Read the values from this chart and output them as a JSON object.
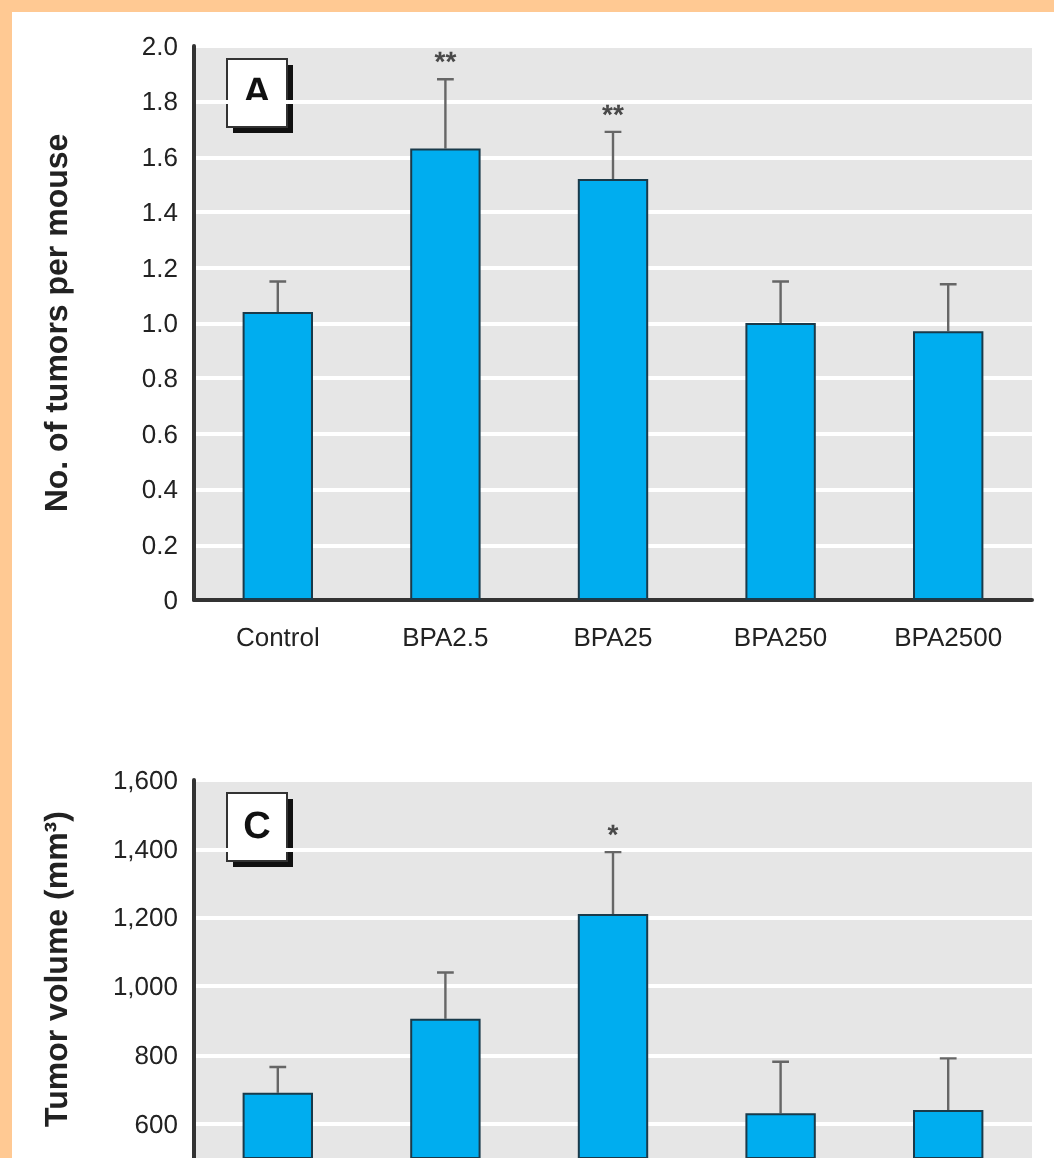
{
  "chart_data": [
    {
      "type": "bar",
      "categories": [
        "Control",
        "BPA2.5",
        "BPA25",
        "BPA250",
        "BPA2500"
      ],
      "series": [
        {
          "color": "#00adef",
          "values": [
            1.04,
            1.63,
            1.52,
            1.0,
            0.97
          ],
          "errors": [
            [
              1.04,
              1.15
            ],
            [
              1.63,
              1.88
            ],
            [
              1.52,
              1.69
            ],
            [
              1.0,
              1.15
            ],
            [
              0.97,
              1.14
            ]
          ]
        }
      ],
      "ylabel": "No. of tumors per mouse",
      "ylim": [
        0,
        2.0
      ],
      "yticks": [
        0,
        {
          "value": 0.2,
          "label": "0.2"
        },
        {
          "value": 0.4,
          "label": "0.4"
        },
        {
          "value": 0.6,
          "label": "0.6"
        },
        {
          "value": 0.8,
          "label": "0.8"
        },
        {
          "value": 1.0,
          "label": "1.0"
        },
        {
          "value": 1.2,
          "label": "1.2"
        },
        {
          "value": 1.4,
          "label": "1.4"
        },
        {
          "value": 1.6,
          "label": "1.6"
        },
        {
          "value": 1.8,
          "label": "1.8"
        },
        {
          "value": 2.0,
          "label": "2.0"
        }
      ],
      "grid": "y",
      "annotations": [
        "A",
        "**",
        "**"
      ]
    },
    {
      "type": "bar",
      "categories": [
        null,
        null,
        null,
        null,
        null
      ],
      "series": [
        {
          "color": "#00adef",
          "values": [
            690,
            905,
            1210,
            630,
            640
          ],
          "errors": [
            [
              690,
              765
            ],
            [
              905,
              1040
            ],
            [
              1210,
              1390
            ],
            [
              630,
              780
            ],
            [
              640,
              790
            ]
          ]
        }
      ],
      "ylabel": "Tumor volume (mm³)",
      "ylim": [
        500,
        1600
      ],
      "yticks": [
        600,
        800,
        {
          "value": 1000,
          "label": "1,000"
        },
        {
          "value": 1200,
          "label": "1,200"
        },
        {
          "value": 1400,
          "label": "1,400"
        },
        {
          "value": 1600,
          "label": "1,600"
        }
      ],
      "grid": "y",
      "tick_labels": "y",
      "annotations": [
        "C",
        "*"
      ]
    }
  ]
}
